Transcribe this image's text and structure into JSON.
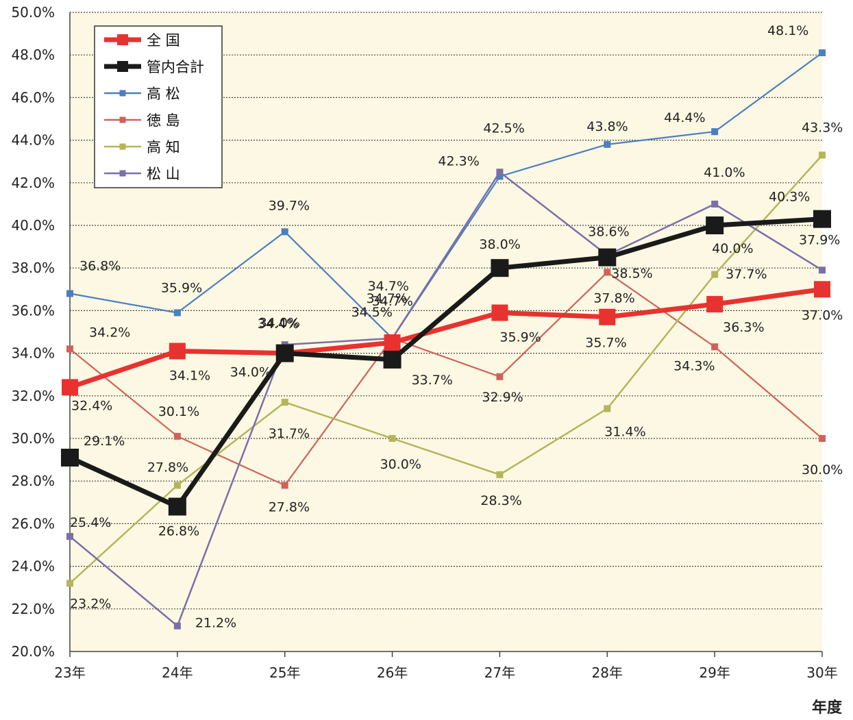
{
  "chart_data": {
    "type": "line",
    "title": "",
    "xlabel": "年度",
    "ylabel": "",
    "categories": [
      "23年",
      "24年",
      "25年",
      "26年",
      "27年",
      "28年",
      "29年",
      "30年"
    ],
    "ylim": [
      20.0,
      50.0
    ],
    "yticks": [
      "20.0%",
      "22.0%",
      "24.0%",
      "26.0%",
      "28.0%",
      "30.0%",
      "32.0%",
      "34.0%",
      "36.0%",
      "38.0%",
      "40.0%",
      "42.0%",
      "44.0%",
      "46.0%",
      "48.0%",
      "50.0%"
    ],
    "grid": true,
    "legend_position": "top-left",
    "series": [
      {
        "name": "全 国",
        "color": "#e8322f",
        "values": [
          32.4,
          34.1,
          34.0,
          34.5,
          35.9,
          35.7,
          36.3,
          37.0
        ],
        "labels": [
          "32.4%",
          "34.1%",
          "34.0%",
          "34.5%",
          "35.9%",
          "35.7%",
          "36.3%",
          "37.0%"
        ]
      },
      {
        "name": "管内合計",
        "color": "#1a1a1a",
        "values": [
          29.1,
          26.8,
          34.0,
          33.7,
          38.0,
          38.5,
          40.0,
          40.3
        ],
        "labels": [
          "29.1%",
          "26.8%",
          "34.0%",
          "33.7%",
          "38.0%",
          "38.5%",
          "40.0%",
          "40.3%"
        ]
      },
      {
        "name": "高 松",
        "color": "#4a7fc1",
        "values": [
          36.8,
          35.9,
          39.7,
          34.7,
          42.3,
          43.8,
          44.4,
          48.1
        ],
        "labels": [
          "36.8%",
          "35.9%",
          "39.7%",
          "34.7%",
          "42.3%",
          "43.8%",
          "44.4%",
          "48.1%"
        ]
      },
      {
        "name": "徳 島",
        "color": "#d0625b",
        "values": [
          34.2,
          30.1,
          27.8,
          34.7,
          32.9,
          37.8,
          34.3,
          30.0
        ],
        "labels": [
          "34.2%",
          "30.1%",
          "27.8%",
          "34.7%",
          "32.9%",
          "37.8%",
          "34.3%",
          "30.0%"
        ]
      },
      {
        "name": "高 知",
        "color": "#b5b55a",
        "values": [
          23.2,
          27.8,
          31.7,
          30.0,
          28.3,
          31.4,
          37.7,
          43.3
        ],
        "labels": [
          "23.2%",
          "27.8%",
          "31.7%",
          "30.0%",
          "28.3%",
          "31.4%",
          "37.7%",
          "43.3%"
        ]
      },
      {
        "name": "松 山",
        "color": "#7a6fa8",
        "values": [
          25.4,
          21.2,
          34.4,
          34.7,
          42.5,
          38.6,
          41.0,
          37.9
        ],
        "labels": [
          "25.4%",
          "21.2%",
          "34.4%",
          "34.7%",
          "42.5%",
          "38.6%",
          "41.0%",
          "37.9%"
        ]
      }
    ]
  }
}
